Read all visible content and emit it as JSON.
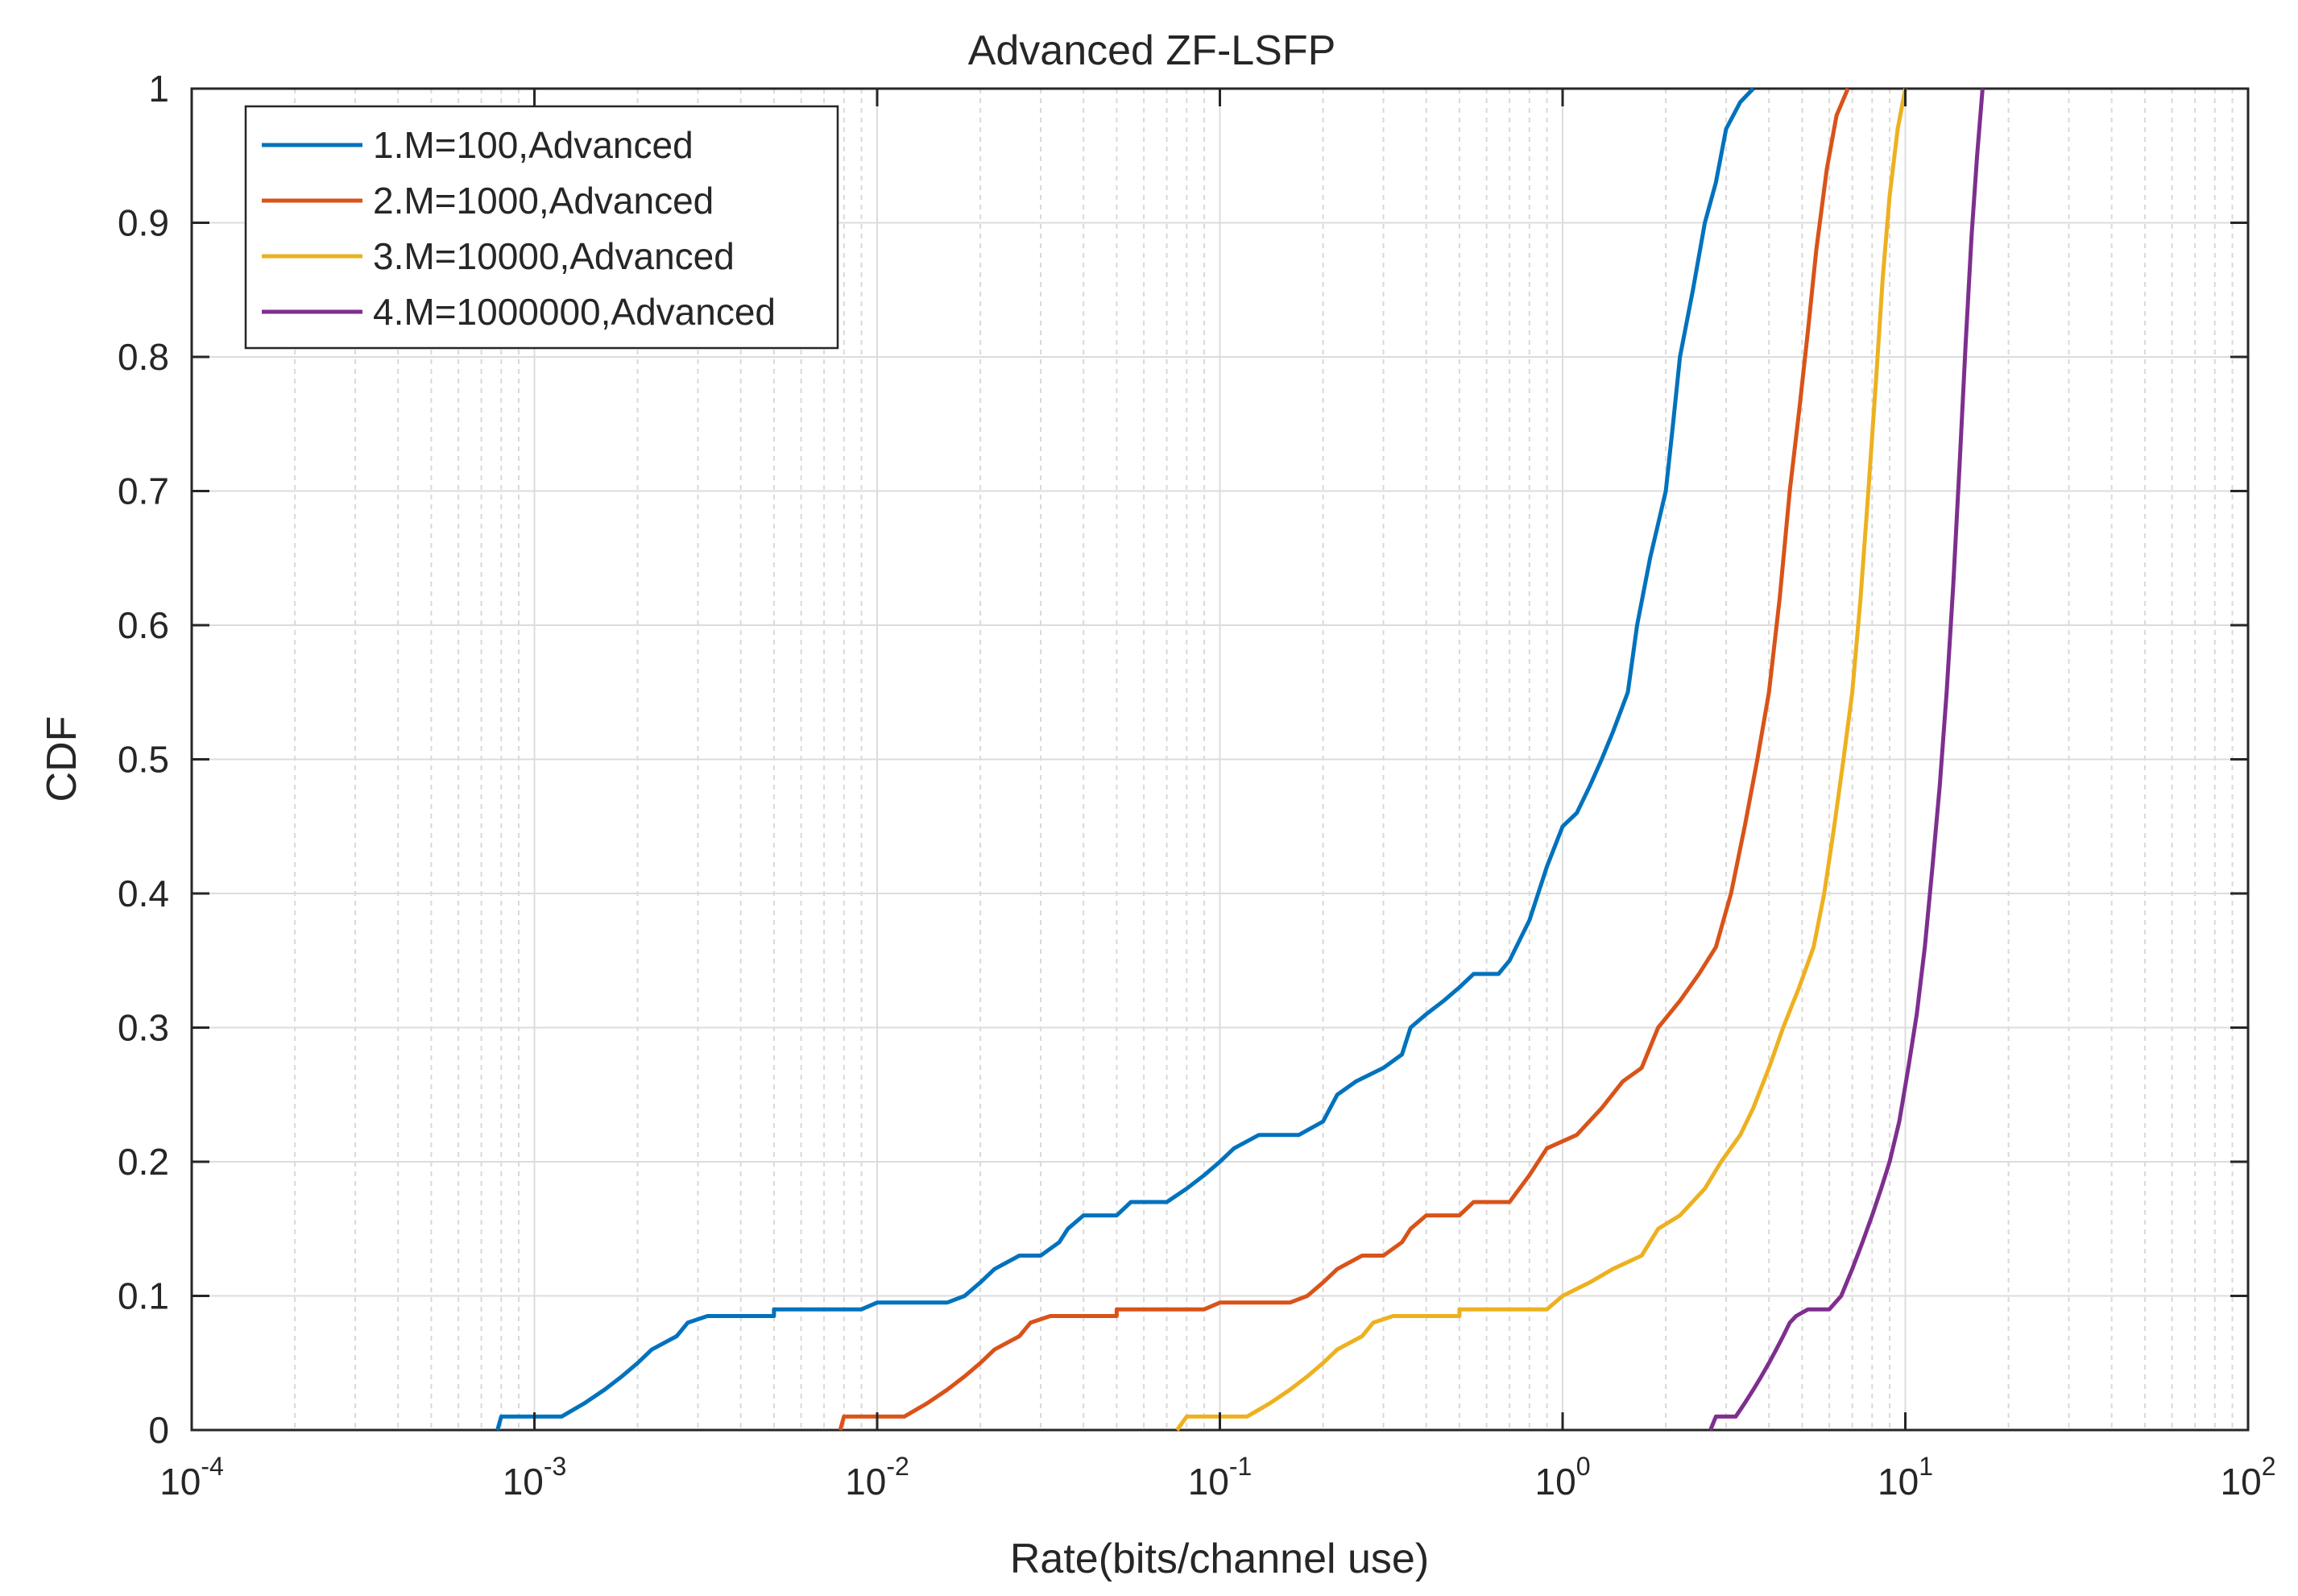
{
  "chart_data": {
    "type": "line",
    "title": "Advanced ZF-LSFP",
    "xlabel": "Rate(bits/channel use)",
    "ylabel": "CDF",
    "xscale": "log",
    "xlim": [
      0.0001,
      100
    ],
    "ylim": [
      0,
      1
    ],
    "grid": true,
    "minor_grid": true,
    "legend_location": "top-left",
    "x_ticks": [
      {
        "base": "10",
        "exp": "-4",
        "value": 0.0001
      },
      {
        "base": "10",
        "exp": "-3",
        "value": 0.001
      },
      {
        "base": "10",
        "exp": "-2",
        "value": 0.01
      },
      {
        "base": "10",
        "exp": "-1",
        "value": 0.1
      },
      {
        "base": "10",
        "exp": "0",
        "value": 1
      },
      {
        "base": "10",
        "exp": "1",
        "value": 10
      },
      {
        "base": "10",
        "exp": "2",
        "value": 100
      }
    ],
    "y_ticks": [
      "0",
      "0.1",
      "0.2",
      "0.3",
      "0.4",
      "0.5",
      "0.6",
      "0.7",
      "0.8",
      "0.9",
      "1"
    ],
    "series": [
      {
        "name": "1.M=100,Advanced",
        "color": "#0072BD",
        "points": [
          [
            0.00078,
            0
          ],
          [
            0.0008,
            0.01
          ],
          [
            0.0012,
            0.01
          ],
          [
            0.0014,
            0.02
          ],
          [
            0.0016,
            0.03
          ],
          [
            0.0018,
            0.04
          ],
          [
            0.002,
            0.05
          ],
          [
            0.0022,
            0.06
          ],
          [
            0.0026,
            0.07
          ],
          [
            0.0028,
            0.08
          ],
          [
            0.0032,
            0.085
          ],
          [
            0.005,
            0.085
          ],
          [
            0.005,
            0.09
          ],
          [
            0.009,
            0.09
          ],
          [
            0.01,
            0.095
          ],
          [
            0.016,
            0.095
          ],
          [
            0.018,
            0.1
          ],
          [
            0.02,
            0.11
          ],
          [
            0.022,
            0.12
          ],
          [
            0.026,
            0.13
          ],
          [
            0.03,
            0.13
          ],
          [
            0.034,
            0.14
          ],
          [
            0.036,
            0.15
          ],
          [
            0.04,
            0.16
          ],
          [
            0.05,
            0.16
          ],
          [
            0.055,
            0.17
          ],
          [
            0.07,
            0.17
          ],
          [
            0.08,
            0.18
          ],
          [
            0.09,
            0.19
          ],
          [
            0.1,
            0.2
          ],
          [
            0.11,
            0.21
          ],
          [
            0.13,
            0.22
          ],
          [
            0.17,
            0.22
          ],
          [
            0.2,
            0.23
          ],
          [
            0.22,
            0.25
          ],
          [
            0.25,
            0.26
          ],
          [
            0.3,
            0.27
          ],
          [
            0.34,
            0.28
          ],
          [
            0.36,
            0.3
          ],
          [
            0.4,
            0.31
          ],
          [
            0.45,
            0.32
          ],
          [
            0.5,
            0.33
          ],
          [
            0.55,
            0.34
          ],
          [
            0.65,
            0.34
          ],
          [
            0.7,
            0.35
          ],
          [
            0.8,
            0.38
          ],
          [
            0.9,
            0.42
          ],
          [
            1.0,
            0.45
          ],
          [
            1.1,
            0.46
          ],
          [
            1.2,
            0.48
          ],
          [
            1.3,
            0.5
          ],
          [
            1.4,
            0.52
          ],
          [
            1.55,
            0.55
          ],
          [
            1.65,
            0.6
          ],
          [
            1.8,
            0.65
          ],
          [
            2.0,
            0.7
          ],
          [
            2.1,
            0.75
          ],
          [
            2.2,
            0.8
          ],
          [
            2.4,
            0.85
          ],
          [
            2.6,
            0.9
          ],
          [
            2.8,
            0.93
          ],
          [
            3.0,
            0.97
          ],
          [
            3.3,
            0.99
          ],
          [
            3.6,
            1.0
          ]
        ]
      },
      {
        "name": "2.M=1000,Advanced",
        "color": "#D95319",
        "points": [
          [
            0.0078,
            0
          ],
          [
            0.008,
            0.01
          ],
          [
            0.012,
            0.01
          ],
          [
            0.014,
            0.02
          ],
          [
            0.016,
            0.03
          ],
          [
            0.018,
            0.04
          ],
          [
            0.02,
            0.05
          ],
          [
            0.022,
            0.06
          ],
          [
            0.026,
            0.07
          ],
          [
            0.028,
            0.08
          ],
          [
            0.032,
            0.085
          ],
          [
            0.05,
            0.085
          ],
          [
            0.05,
            0.09
          ],
          [
            0.09,
            0.09
          ],
          [
            0.1,
            0.095
          ],
          [
            0.16,
            0.095
          ],
          [
            0.18,
            0.1
          ],
          [
            0.2,
            0.11
          ],
          [
            0.22,
            0.12
          ],
          [
            0.26,
            0.13
          ],
          [
            0.3,
            0.13
          ],
          [
            0.34,
            0.14
          ],
          [
            0.36,
            0.15
          ],
          [
            0.4,
            0.16
          ],
          [
            0.5,
            0.16
          ],
          [
            0.55,
            0.17
          ],
          [
            0.7,
            0.17
          ],
          [
            0.8,
            0.19
          ],
          [
            0.9,
            0.21
          ],
          [
            1.1,
            0.22
          ],
          [
            1.3,
            0.24
          ],
          [
            1.5,
            0.26
          ],
          [
            1.7,
            0.27
          ],
          [
            1.9,
            0.3
          ],
          [
            2.2,
            0.32
          ],
          [
            2.5,
            0.34
          ],
          [
            2.8,
            0.36
          ],
          [
            3.1,
            0.4
          ],
          [
            3.4,
            0.45
          ],
          [
            3.7,
            0.5
          ],
          [
            4.0,
            0.55
          ],
          [
            4.3,
            0.62
          ],
          [
            4.6,
            0.7
          ],
          [
            4.9,
            0.76
          ],
          [
            5.2,
            0.82
          ],
          [
            5.5,
            0.88
          ],
          [
            5.9,
            0.94
          ],
          [
            6.3,
            0.98
          ],
          [
            6.8,
            1.0
          ]
        ]
      },
      {
        "name": "3.M=10000,Advanced",
        "color": "#EDB120",
        "points": [
          [
            0.075,
            0
          ],
          [
            0.08,
            0.01
          ],
          [
            0.12,
            0.01
          ],
          [
            0.14,
            0.02
          ],
          [
            0.16,
            0.03
          ],
          [
            0.18,
            0.04
          ],
          [
            0.2,
            0.05
          ],
          [
            0.22,
            0.06
          ],
          [
            0.26,
            0.07
          ],
          [
            0.28,
            0.08
          ],
          [
            0.32,
            0.085
          ],
          [
            0.5,
            0.085
          ],
          [
            0.5,
            0.09
          ],
          [
            0.9,
            0.09
          ],
          [
            1.0,
            0.1
          ],
          [
            1.2,
            0.11
          ],
          [
            1.4,
            0.12
          ],
          [
            1.7,
            0.13
          ],
          [
            1.9,
            0.15
          ],
          [
            2.2,
            0.16
          ],
          [
            2.6,
            0.18
          ],
          [
            2.9,
            0.2
          ],
          [
            3.3,
            0.22
          ],
          [
            3.6,
            0.24
          ],
          [
            4.0,
            0.27
          ],
          [
            4.4,
            0.3
          ],
          [
            4.9,
            0.33
          ],
          [
            5.4,
            0.36
          ],
          [
            5.8,
            0.4
          ],
          [
            6.2,
            0.45
          ],
          [
            6.6,
            0.5
          ],
          [
            7.0,
            0.55
          ],
          [
            7.4,
            0.62
          ],
          [
            7.8,
            0.7
          ],
          [
            8.2,
            0.78
          ],
          [
            8.6,
            0.86
          ],
          [
            9.0,
            0.92
          ],
          [
            9.5,
            0.97
          ],
          [
            10.0,
            1.0
          ]
        ]
      },
      {
        "name": "4.M=1000000,Advanced",
        "color": "#7E2F8E",
        "points": [
          [
            2.7,
            0
          ],
          [
            2.8,
            0.01
          ],
          [
            3.2,
            0.01
          ],
          [
            3.4,
            0.02
          ],
          [
            3.6,
            0.03
          ],
          [
            3.8,
            0.04
          ],
          [
            4.0,
            0.05
          ],
          [
            4.2,
            0.06
          ],
          [
            4.4,
            0.07
          ],
          [
            4.6,
            0.08
          ],
          [
            4.8,
            0.085
          ],
          [
            5.2,
            0.09
          ],
          [
            6.0,
            0.09
          ],
          [
            6.5,
            0.1
          ],
          [
            7.0,
            0.12
          ],
          [
            7.5,
            0.14
          ],
          [
            8.0,
            0.16
          ],
          [
            8.5,
            0.18
          ],
          [
            9.0,
            0.2
          ],
          [
            9.6,
            0.23
          ],
          [
            10.2,
            0.27
          ],
          [
            10.8,
            0.31
          ],
          [
            11.4,
            0.36
          ],
          [
            12.0,
            0.42
          ],
          [
            12.6,
            0.48
          ],
          [
            13.2,
            0.55
          ],
          [
            13.8,
            0.63
          ],
          [
            14.4,
            0.72
          ],
          [
            15.0,
            0.81
          ],
          [
            15.6,
            0.89
          ],
          [
            16.2,
            0.95
          ],
          [
            16.8,
            1.0
          ]
        ]
      }
    ]
  }
}
